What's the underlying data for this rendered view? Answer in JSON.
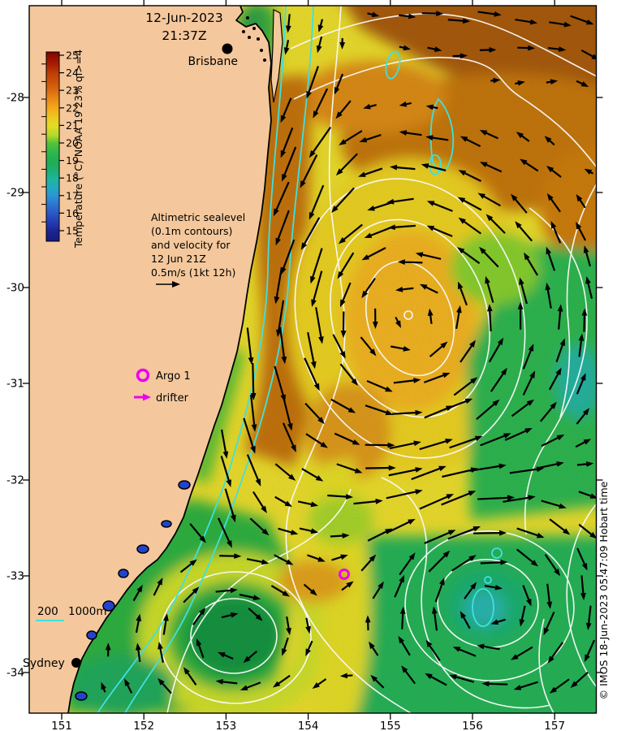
{
  "figure": {
    "timestamp_line1": "12-Jun-2023",
    "timestamp_line2": "21:37Z",
    "copyright": "© IMOS 18-Jun-2023 05:47:09 Hobart time"
  },
  "cities": {
    "brisbane": "Brisbane",
    "sydney": "Sydney"
  },
  "annotation": {
    "lines": [
      "Altimetric sealevel",
      "(0.1m contours)",
      "and velocity for",
      "12 Jun 21Z",
      "0.5m/s (1kt 12h)"
    ]
  },
  "legend": {
    "argo": "Argo 1",
    "drifter": "drifter",
    "depth_200": "200",
    "depth_1000": "1000m"
  },
  "colorbar": {
    "label": "Temperature (°C) NOAA 19 23% ql>=4",
    "tick_values": [
      "25",
      "24",
      "23",
      "22",
      "21",
      "20",
      "19",
      "18",
      "17",
      "16",
      "15"
    ],
    "gradient": [
      [
        0,
        "#7f0000"
      ],
      [
        0.02,
        "#8f0a00"
      ],
      [
        0.06,
        "#a51a02"
      ],
      [
        0.11,
        "#bc3c08"
      ],
      [
        0.16,
        "#cd5409"
      ],
      [
        0.2,
        "#d8680f"
      ],
      [
        0.25,
        "#e98c15"
      ],
      [
        0.3,
        "#f3ab1c"
      ],
      [
        0.35,
        "#efc921"
      ],
      [
        0.39,
        "#e2dc25"
      ],
      [
        0.44,
        "#b4da28"
      ],
      [
        0.48,
        "#56c238"
      ],
      [
        0.53,
        "#2db84b"
      ],
      [
        0.58,
        "#1fae56"
      ],
      [
        0.63,
        "#1caf73"
      ],
      [
        0.67,
        "#1fb49c"
      ],
      [
        0.72,
        "#23a9c1"
      ],
      [
        0.76,
        "#2b93d4"
      ],
      [
        0.81,
        "#2e72d2"
      ],
      [
        0.86,
        "#2b52c4"
      ],
      [
        0.91,
        "#2336ad"
      ],
      [
        0.95,
        "#1b2390"
      ],
      [
        1,
        "#141b7c"
      ]
    ]
  },
  "axes": {
    "lon_labels": [
      "151",
      "152",
      "153",
      "154",
      "155",
      "156",
      "157"
    ],
    "lat_labels": [
      "-28",
      "-29",
      "-30",
      "-31",
      "-32",
      "-33",
      "-34"
    ]
  },
  "colors": {
    "land": "#f4c89c",
    "marker_magenta": "#ee00ee",
    "depth_contour": "#3fe0e0",
    "sealevel_contour": "#fafafa",
    "vector": "#000000"
  }
}
